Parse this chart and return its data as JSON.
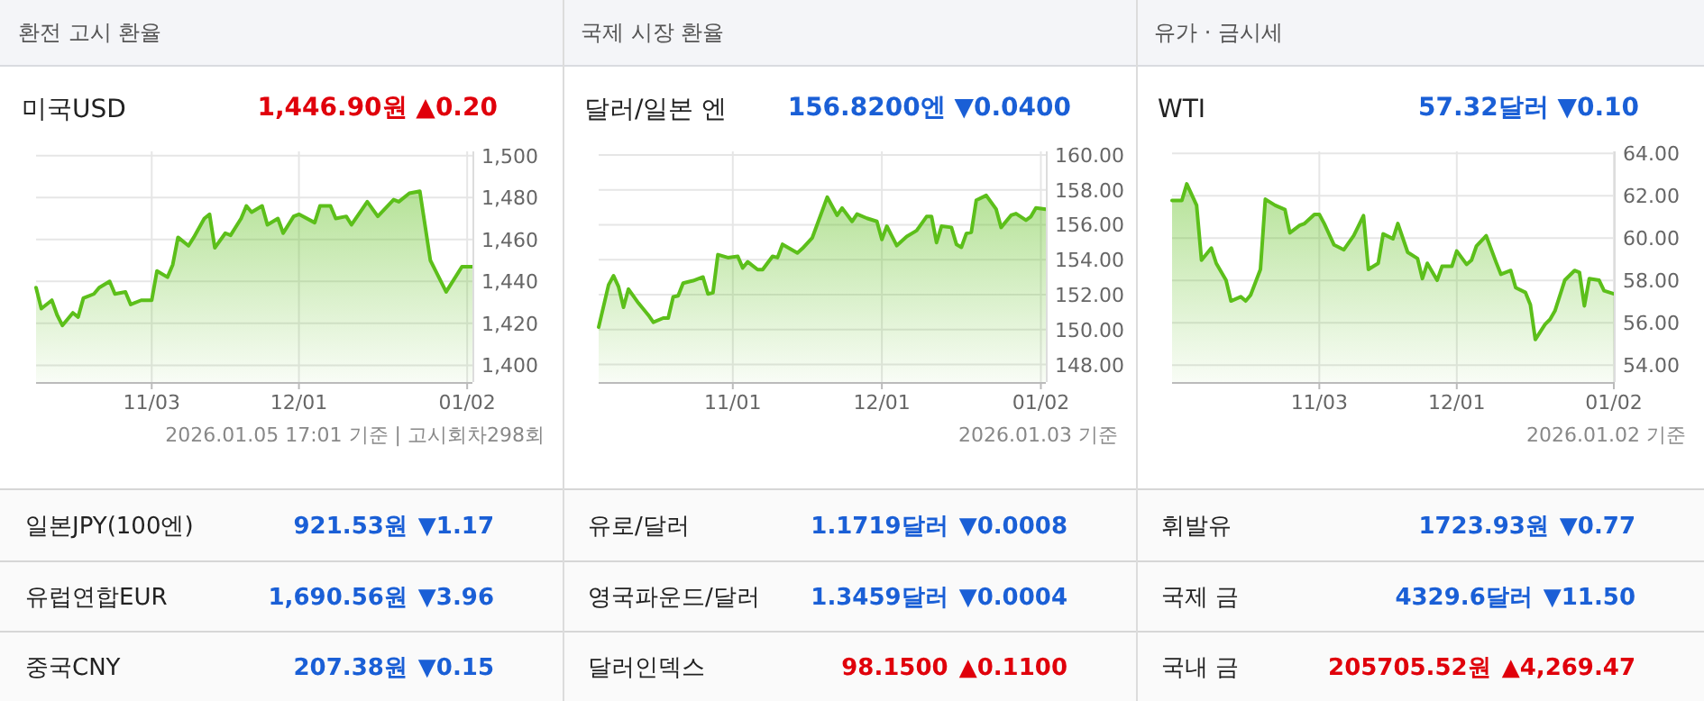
{
  "chart_data": [
    {
      "type": "area",
      "title": "환전 고시 환율",
      "subtitle": "미국USD",
      "annotations": [
        "1,446.90원 ▲0.20",
        "2026.01.05 17:01 기준 | 고시회차298회"
      ],
      "grid": true,
      "x": [
        "2025-10-12",
        "2025-10-13",
        "2025-10-15",
        "2025-10-16",
        "2025-10-17",
        "2025-10-19",
        "2025-10-20",
        "2025-10-21",
        "2025-10-23",
        "2025-10-24",
        "2025-10-26",
        "2025-10-27",
        "2025-10-29",
        "2025-10-30",
        "2025-11-01",
        "2025-11-03",
        "2025-11-04",
        "2025-11-06",
        "2025-11-07",
        "2025-11-08",
        "2025-11-10",
        "2025-11-11",
        "2025-11-13",
        "2025-11-14",
        "2025-11-15",
        "2025-11-17",
        "2025-11-18",
        "2025-11-20",
        "2025-11-21",
        "2025-11-22",
        "2025-11-24",
        "2025-11-25",
        "2025-11-27",
        "2025-11-28",
        "2025-11-30",
        "2025-12-01",
        "2025-12-04",
        "2025-12-05",
        "2025-12-07",
        "2025-12-08",
        "2025-12-10",
        "2025-12-11",
        "2025-12-14",
        "2025-12-16",
        "2025-12-19",
        "2025-12-20",
        "2025-12-22",
        "2025-12-24",
        "2025-12-26",
        "2025-12-27",
        "2025-12-29",
        "2026-01-01",
        "2026-01-03"
      ],
      "series": [
        {
          "color": "#5cbf1a",
          "values": [
            1437,
            1427,
            1431,
            1424,
            1419,
            1425,
            1423,
            1432,
            1434,
            1437,
            1440,
            1434,
            1435,
            1429,
            1431,
            1431,
            1445,
            1442,
            1448,
            1461,
            1457,
            1461,
            1470,
            1472,
            1456,
            1463,
            1462,
            1470,
            1476,
            1473,
            1476,
            1467,
            1470,
            1463,
            1471,
            1472,
            1468,
            1476,
            1476,
            1470,
            1471,
            1467,
            1478,
            1471,
            1479,
            1478,
            1482,
            1483,
            1450,
            1445,
            1435,
            1447,
            1447
          ]
        }
      ],
      "xlim": [
        "2025-10-12",
        "2026-01-03"
      ],
      "xticks": [
        {
          "value": "2025-11-03",
          "label": "11/03"
        },
        {
          "value": "2025-12-01",
          "label": "12/01"
        },
        {
          "value": "2026-01-02",
          "label": "01/02"
        }
      ],
      "ylim": [
        1392,
        1502
      ],
      "yticks": [
        {
          "value": 1400,
          "label": "1,400"
        },
        {
          "value": 1420,
          "label": "1,420"
        },
        {
          "value": 1440,
          "label": "1,440"
        },
        {
          "value": 1460,
          "label": "1,460"
        },
        {
          "value": 1480,
          "label": "1,480"
        },
        {
          "value": 1500,
          "label": "1,500"
        }
      ]
    },
    {
      "type": "area",
      "title": "국제 시장 환율",
      "subtitle": "달러/일본 엔",
      "annotations": [
        "156.8200엔 ▼0.0400",
        "2026.01.03 기준"
      ],
      "grid": true,
      "x": [
        "2025-10-05",
        "2025-10-07",
        "2025-10-08",
        "2025-10-09",
        "2025-10-10",
        "2025-10-11",
        "2025-10-13",
        "2025-10-15",
        "2025-10-16",
        "2025-10-18",
        "2025-10-19",
        "2025-10-20",
        "2025-10-21",
        "2025-10-22",
        "2025-10-24",
        "2025-10-26",
        "2025-10-27",
        "2025-10-28",
        "2025-10-29",
        "2025-10-31",
        "2025-11-02",
        "2025-11-03",
        "2025-11-04",
        "2025-11-06",
        "2025-11-07",
        "2025-11-09",
        "2025-11-10",
        "2025-11-11",
        "2025-11-14",
        "2025-11-15",
        "2025-11-17",
        "2025-11-20",
        "2025-11-22",
        "2025-11-23",
        "2025-11-25",
        "2025-11-26",
        "2025-11-28",
        "2025-11-30",
        "2025-12-01",
        "2025-12-02",
        "2025-12-04",
        "2025-12-06",
        "2025-12-08",
        "2025-12-10",
        "2025-12-11",
        "2025-12-12",
        "2025-12-13",
        "2025-12-15",
        "2025-12-16",
        "2025-12-17",
        "2025-12-18",
        "2025-12-19",
        "2025-12-20",
        "2025-12-22",
        "2025-12-24",
        "2025-12-25",
        "2025-12-27",
        "2025-12-28",
        "2025-12-30",
        "2025-12-31",
        "2026-01-01",
        "2026-01-03"
      ],
      "series": [
        {
          "color": "#5cbf1a",
          "values": [
            150.14,
            152.56,
            153.08,
            152.46,
            151.28,
            152.32,
            151.52,
            150.83,
            150.42,
            150.66,
            150.66,
            151.87,
            151.94,
            152.66,
            152.8,
            153.01,
            152.04,
            152.11,
            154.29,
            154.12,
            154.19,
            153.53,
            153.88,
            153.43,
            153.43,
            154.19,
            154.12,
            154.88,
            154.39,
            154.64,
            155.26,
            157.58,
            156.54,
            156.96,
            156.19,
            156.61,
            156.37,
            156.19,
            155.16,
            155.92,
            154.81,
            155.33,
            155.67,
            156.47,
            156.47,
            154.98,
            155.92,
            155.85,
            154.88,
            154.71,
            155.5,
            155.57,
            157.4,
            157.68,
            156.89,
            155.85,
            156.54,
            156.64,
            156.26,
            156.47,
            156.96,
            156.89
          ]
        }
      ],
      "xlim": [
        "2025-10-05",
        "2026-01-03"
      ],
      "xticks": [
        {
          "value": "2025-11-01",
          "label": "11/01"
        },
        {
          "value": "2025-12-01",
          "label": "12/01"
        },
        {
          "value": "2026-01-02",
          "label": "01/02"
        }
      ],
      "ylim": [
        147,
        160.2
      ],
      "yticks": [
        {
          "value": 148,
          "label": "148.00"
        },
        {
          "value": 150,
          "label": "150.00"
        },
        {
          "value": 152,
          "label": "152.00"
        },
        {
          "value": 154,
          "label": "154.00"
        },
        {
          "value": 156,
          "label": "156.00"
        },
        {
          "value": 158,
          "label": "158.00"
        },
        {
          "value": 160,
          "label": "160.00"
        }
      ]
    },
    {
      "type": "area",
      "title": "유가 · 금시세",
      "subtitle": "WTI",
      "annotations": [
        "57.32달러 ▼0.10",
        "2026.01.02 기준"
      ],
      "grid": true,
      "x": [
        "2025-10-04",
        "2025-10-06",
        "2025-10-07",
        "2025-10-09",
        "2025-10-10",
        "2025-10-12",
        "2025-10-13",
        "2025-10-15",
        "2025-10-16",
        "2025-10-18",
        "2025-10-19",
        "2025-10-20",
        "2025-10-22",
        "2025-10-23",
        "2025-10-25",
        "2025-10-27",
        "2025-10-28",
        "2025-10-30",
        "2025-10-31",
        "2025-11-02",
        "2025-11-03",
        "2025-11-04",
        "2025-11-06",
        "2025-11-08",
        "2025-11-10",
        "2025-11-12",
        "2025-11-13",
        "2025-11-15",
        "2025-11-16",
        "2025-11-18",
        "2025-11-19",
        "2025-11-21",
        "2025-11-23",
        "2025-11-24",
        "2025-11-25",
        "2025-11-27",
        "2025-11-28",
        "2025-11-30",
        "2025-12-01",
        "2025-12-03",
        "2025-12-04",
        "2025-12-05",
        "2025-12-07",
        "2025-12-09",
        "2025-12-10",
        "2025-12-12",
        "2025-12-13",
        "2025-12-15",
        "2025-12-16",
        "2025-12-17",
        "2025-12-19",
        "2025-12-20",
        "2025-12-21",
        "2025-12-23",
        "2025-12-25",
        "2025-12-26",
        "2025-12-27",
        "2025-12-28",
        "2025-12-30",
        "2025-12-31",
        "2026-01-02"
      ],
      "series": [
        {
          "color": "#5cbf1a",
          "values": [
            61.78,
            61.78,
            62.56,
            61.55,
            58.96,
            59.53,
            58.81,
            58.01,
            57.03,
            57.23,
            57.03,
            57.31,
            58.52,
            61.84,
            61.55,
            61.35,
            60.25,
            60.6,
            60.69,
            61.12,
            61.12,
            60.69,
            59.68,
            59.45,
            60.11,
            61.06,
            58.52,
            58.81,
            60.2,
            59.97,
            60.69,
            59.33,
            59.04,
            58.09,
            58.81,
            58.01,
            58.67,
            58.67,
            59.39,
            58.76,
            58.96,
            59.62,
            60.11,
            58.87,
            58.29,
            58.47,
            57.66,
            57.43,
            56.85,
            55.21,
            55.93,
            56.16,
            56.56,
            58.01,
            58.47,
            58.38,
            56.8,
            58.09,
            58.01,
            57.52,
            57.37
          ]
        }
      ],
      "xlim": [
        "2025-10-04",
        "2026-01-02"
      ],
      "xticks": [
        {
          "value": "2025-11-03",
          "label": "11/03"
        },
        {
          "value": "2025-12-01",
          "label": "12/01"
        },
        {
          "value": "2026-01-02",
          "label": "01/02"
        }
      ],
      "ylim": [
        53.2,
        64.1
      ],
      "yticks": [
        {
          "value": 54,
          "label": "54.00"
        },
        {
          "value": 56,
          "label": "56.00"
        },
        {
          "value": 58,
          "label": "58.00"
        },
        {
          "value": 60,
          "label": "60.00"
        },
        {
          "value": 62,
          "label": "62.00"
        },
        {
          "value": 64,
          "label": "64.00"
        }
      ]
    },
    {
      "type": "other",
      "annotations": [
        "일본JPY(100엔)",
        "921.53원",
        "▼1.17",
        "유럽연합EUR",
        "1,690.56원",
        "▼3.96",
        "중국CNY",
        "207.38원",
        "▼0.15",
        "유로/달러",
        "1.1719달러",
        "▼0.0008",
        "영국파운드/달러",
        "1.3459달러",
        "▼0.0004",
        "달러인덱스",
        "98.1500",
        "▲0.1100",
        "휘발유",
        "1723.93원",
        "▼0.77",
        "국제 금",
        "4329.6달러",
        "▼11.50",
        "국내 금",
        "205705.52원",
        "▲4,269.47"
      ]
    }
  ]
}
